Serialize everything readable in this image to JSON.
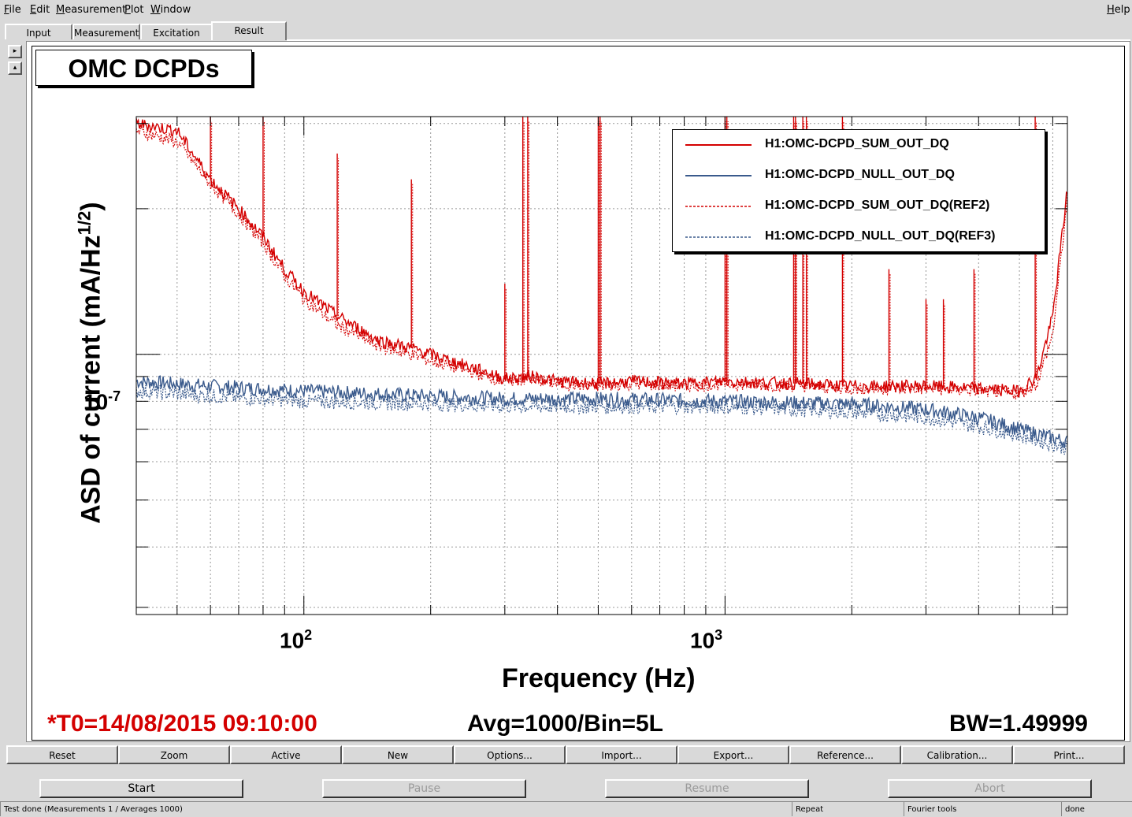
{
  "menu": {
    "file": "File",
    "edit": "Edit",
    "measurement": "Measurement",
    "plot": "Plot",
    "window": "Window",
    "help": "Help"
  },
  "tabs": [
    "Input",
    "Measurement",
    "Excitation",
    "Result"
  ],
  "plot_title": "OMC DCPDs",
  "chart_data": {
    "type": "line",
    "title": "OMC DCPDs",
    "xlabel": "Frequency (Hz)",
    "ylabel": "ASD of current (mA/Hz",
    "ylabel_sup": "1/2",
    "ylabel_end": ")",
    "x_scale": "log",
    "y_scale": "log",
    "xlim": [
      40,
      6500
    ],
    "ylim": [
      2.9e-08,
      3.1e-07
    ],
    "x_ticks": [
      {
        "base": "10",
        "exp": "2",
        "value": 100
      },
      {
        "base": "10",
        "exp": "3",
        "value": 1000
      }
    ],
    "y_ticks": [
      {
        "base": "10",
        "exp": "-7",
        "value": 1e-07
      }
    ],
    "grid": true,
    "legend_position": "top-right",
    "legend": [
      {
        "label": "H1:OMC-DCPD_SUM_OUT_DQ",
        "color": "#d40000",
        "style": "solid"
      },
      {
        "label": "H1:OMC-DCPD_NULL_OUT_DQ",
        "color": "#3a5a8c",
        "style": "solid"
      },
      {
        "label": "H1:OMC-DCPD_SUM_OUT_DQ(REF2)",
        "color": "#d40000",
        "style": "dotted"
      },
      {
        "label": "H1:OMC-DCPD_NULL_OUT_DQ(REF3)",
        "color": "#3a5a8c",
        "style": "dotted"
      }
    ],
    "series": [
      {
        "name": "H1:OMC-DCPD_SUM_OUT_DQ",
        "x": [
          40,
          50,
          60,
          70,
          80,
          90,
          100,
          120,
          150,
          180,
          200,
          250,
          300,
          350,
          400,
          500,
          600,
          800,
          1000,
          1500,
          2000,
          3000,
          4000,
          5000,
          5500,
          6000,
          6500
        ],
        "values": [
          3e-07,
          2.9e-07,
          2.3e-07,
          2e-07,
          1.75e-07,
          1.5e-07,
          1.35e-07,
          1.2e-07,
          1.07e-07,
          1.03e-07,
          1e-07,
          9.4e-08,
          8.9e-08,
          9e-08,
          8.8e-08,
          8.7e-08,
          8.8e-08,
          8.7e-08,
          8.8e-08,
          8.7e-08,
          8.6e-08,
          8.6e-08,
          8.5e-08,
          8.4e-08,
          9e-08,
          1.2e-07,
          2.2e-07
        ]
      },
      {
        "name": "H1:OMC-DCPD_NULL_OUT_DQ",
        "x": [
          40,
          60,
          100,
          200,
          300,
          500,
          1000,
          2000,
          3000,
          4000,
          5000,
          6500
        ],
        "values": [
          8.8e-08,
          8.6e-08,
          8.4e-08,
          8.2e-08,
          8.1e-08,
          8.1e-08,
          8e-08,
          7.9e-08,
          7.7e-08,
          7.4e-08,
          7e-08,
          6.6e-08
        ]
      },
      {
        "name": "H1:OMC-DCPD_SUM_OUT_DQ(REF2)",
        "x": [
          40,
          50,
          60,
          70,
          80,
          90,
          100,
          120,
          150,
          180,
          200,
          250,
          300,
          350,
          400,
          500,
          600,
          800,
          1000,
          1500,
          2000,
          3000,
          4000,
          5000,
          5500,
          6000,
          6500
        ],
        "values": [
          2.9e-07,
          2.75e-07,
          2.25e-07,
          1.95e-07,
          1.7e-07,
          1.45e-07,
          1.3e-07,
          1.15e-07,
          1.04e-07,
          1e-07,
          9.7e-08,
          9.2e-08,
          8.8e-08,
          8.9e-08,
          8.7e-08,
          8.6e-08,
          8.7e-08,
          8.6e-08,
          8.7e-08,
          8.6e-08,
          8.5e-08,
          8.5e-08,
          8.4e-08,
          8.3e-08,
          8.7e-08,
          1.1e-07,
          2.1e-07
        ]
      },
      {
        "name": "H1:OMC-DCPD_NULL_OUT_DQ(REF3)",
        "x": [
          40,
          60,
          100,
          200,
          300,
          500,
          1000,
          2000,
          3000,
          4000,
          5000,
          6500
        ],
        "values": [
          8.4e-08,
          8.2e-08,
          8e-08,
          7.9e-08,
          7.8e-08,
          7.8e-08,
          7.8e-08,
          7.6e-08,
          7.4e-08,
          7.1e-08,
          6.8e-08,
          6.4e-08
        ]
      }
    ],
    "lines": [
      {
        "x": 60,
        "top": 3.1e-07
      },
      {
        "x": 80,
        "top": 3.1e-07
      },
      {
        "x": 120,
        "top": 2.6e-07
      },
      {
        "x": 180,
        "top": 2.3e-07
      },
      {
        "x": 300,
        "top": 1.4e-07
      },
      {
        "x": 331,
        "top": 3.1e-07
      },
      {
        "x": 340,
        "top": 3.1e-07
      },
      {
        "x": 500,
        "top": 3.1e-07
      },
      {
        "x": 505,
        "top": 3.1e-07
      },
      {
        "x": 1000,
        "top": 3.1e-07
      },
      {
        "x": 1010,
        "top": 3.1e-07
      },
      {
        "x": 1455,
        "top": 3.1e-07
      },
      {
        "x": 1470,
        "top": 3.1e-07
      },
      {
        "x": 1530,
        "top": 3.1e-07
      },
      {
        "x": 1560,
        "top": 3.1e-07
      },
      {
        "x": 1900,
        "top": 3.1e-07
      },
      {
        "x": 2450,
        "top": 1.5e-07
      },
      {
        "x": 3000,
        "top": 1.3e-07
      },
      {
        "x": 3300,
        "top": 1.3e-07
      },
      {
        "x": 3900,
        "top": 1.5e-07
      },
      {
        "x": 5450,
        "top": 3.1e-07
      }
    ]
  },
  "info": {
    "t0": "*T0=14/08/2015 09:10:00",
    "avg": "Avg=1000/Bin=5L",
    "bw": "BW=1.49999"
  },
  "tool_buttons": [
    "Reset",
    "Zoom",
    "Active",
    "New",
    "Options...",
    "Import...",
    "Export...",
    "Reference...",
    "Calibration...",
    "Print..."
  ],
  "run_buttons": [
    {
      "label": "Start",
      "enabled": true
    },
    {
      "label": "Pause",
      "enabled": false
    },
    {
      "label": "Resume",
      "enabled": false
    },
    {
      "label": "Abort",
      "enabled": false
    }
  ],
  "status": {
    "main": "Test done (Measurements 1 / Averages 1000)",
    "repeat": "Repeat",
    "fourier": "Fourier tools",
    "done": "done"
  },
  "colors": {
    "sum": "#d40000",
    "null": "#3a5a8c"
  }
}
